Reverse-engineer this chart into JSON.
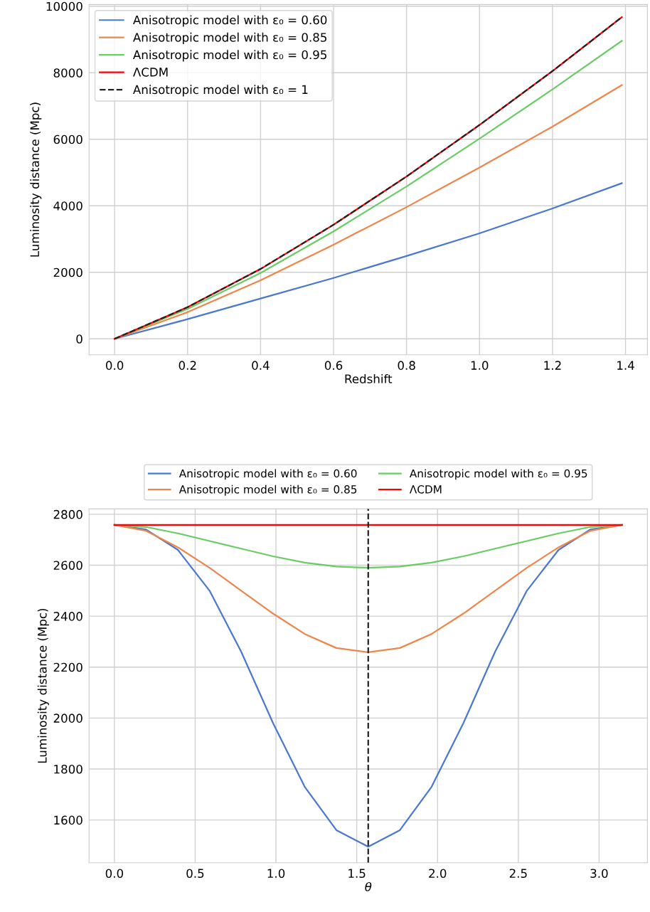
{
  "chart_data": [
    {
      "type": "line",
      "xlabel": "Redshift",
      "ylabel": "Luminosity distance (Mpc)",
      "xlim": [
        -0.07,
        1.46
      ],
      "ylim": [
        -480,
        10050
      ],
      "xticks": [
        {
          "value": 0,
          "label": "0.0"
        },
        0.2,
        0.4,
        0.6,
        0.8,
        {
          "value": 1,
          "label": "1.0"
        },
        1.2,
        1.4
      ],
      "yticks": [
        0,
        2000,
        4000,
        6000,
        8000,
        10000
      ],
      "grid": true,
      "legend": "top left",
      "x": [
        0,
        0.2,
        0.4,
        0.6,
        0.8,
        1.0,
        1.2,
        1.39
      ],
      "series": [
        {
          "name": "Anisotropic model with ε₀ = 0.60",
          "color": "#4878d0",
          "values": [
            0,
            590,
            1210,
            1830,
            2490,
            3170,
            3920,
            4680
          ]
        },
        {
          "name": "Anisotropic model with ε₀ = 0.85",
          "color": "#ee854a",
          "values": [
            0,
            800,
            1760,
            2830,
            3960,
            5150,
            6380,
            7630
          ]
        },
        {
          "name": "Anisotropic model with ε₀ = 0.95",
          "color": "#6acc64",
          "values": [
            0,
            900,
            1980,
            3230,
            4580,
            6020,
            7500,
            8960
          ]
        },
        {
          "name": "ΛCDM",
          "color": "#ff0000",
          "values": [
            0,
            950,
            2100,
            3430,
            4880,
            6430,
            8050,
            9670
          ]
        },
        {
          "name": "Anisotropic model with ε₀ = 1",
          "color": "#222222",
          "line_style": "dashed",
          "values": [
            0,
            950,
            2100,
            3430,
            4880,
            6430,
            8050,
            9670
          ]
        }
      ]
    },
    {
      "type": "line",
      "xlabel": "θ",
      "ylabel": "Luminosity distance (Mpc)",
      "xlim": [
        -0.157,
        3.299
      ],
      "ylim": [
        1432,
        2821
      ],
      "xticks": [
        {
          "value": 0,
          "label": "0.0"
        },
        0.5,
        {
          "value": 1,
          "label": "1.0"
        },
        1.5,
        {
          "value": 2,
          "label": "2.0"
        },
        2.5,
        {
          "value": 3,
          "label": "3.0"
        }
      ],
      "yticks": [
        1600,
        1800,
        2000,
        2200,
        2400,
        2600,
        2800
      ],
      "grid": true,
      "legend": "top",
      "x": [
        0,
        0.196,
        0.393,
        0.589,
        0.785,
        0.982,
        1.178,
        1.374,
        1.571,
        1.767,
        1.963,
        2.16,
        2.356,
        2.553,
        2.749,
        2.945,
        3.142
      ],
      "ref_lines": [
        {
          "axis": "x",
          "value": 1.571,
          "color": "#222222",
          "line_style": "dashed"
        }
      ],
      "series": [
        {
          "name": "Anisotropic model with ε₀ = 0.60",
          "color": "#4878d0",
          "values": [
            2758,
            2740,
            2660,
            2500,
            2260,
            1980,
            1730,
            1560,
            1495,
            1560,
            1730,
            1980,
            2260,
            2500,
            2660,
            2740,
            2758
          ]
        },
        {
          "name": "Anisotropic model with ε₀ = 0.85",
          "color": "#ee854a",
          "values": [
            2758,
            2735,
            2670,
            2590,
            2500,
            2410,
            2330,
            2275,
            2258,
            2275,
            2330,
            2410,
            2500,
            2590,
            2670,
            2735,
            2758
          ]
        },
        {
          "name": "Anisotropic model with ε₀ = 0.95",
          "color": "#6acc64",
          "values": [
            2758,
            2750,
            2725,
            2695,
            2665,
            2635,
            2610,
            2595,
            2590,
            2595,
            2610,
            2635,
            2665,
            2695,
            2725,
            2750,
            2758
          ]
        },
        {
          "name": "ΛCDM",
          "color": "#ff0000",
          "x": [
            0,
            3.142
          ],
          "values": [
            2758,
            2758
          ]
        }
      ]
    }
  ]
}
